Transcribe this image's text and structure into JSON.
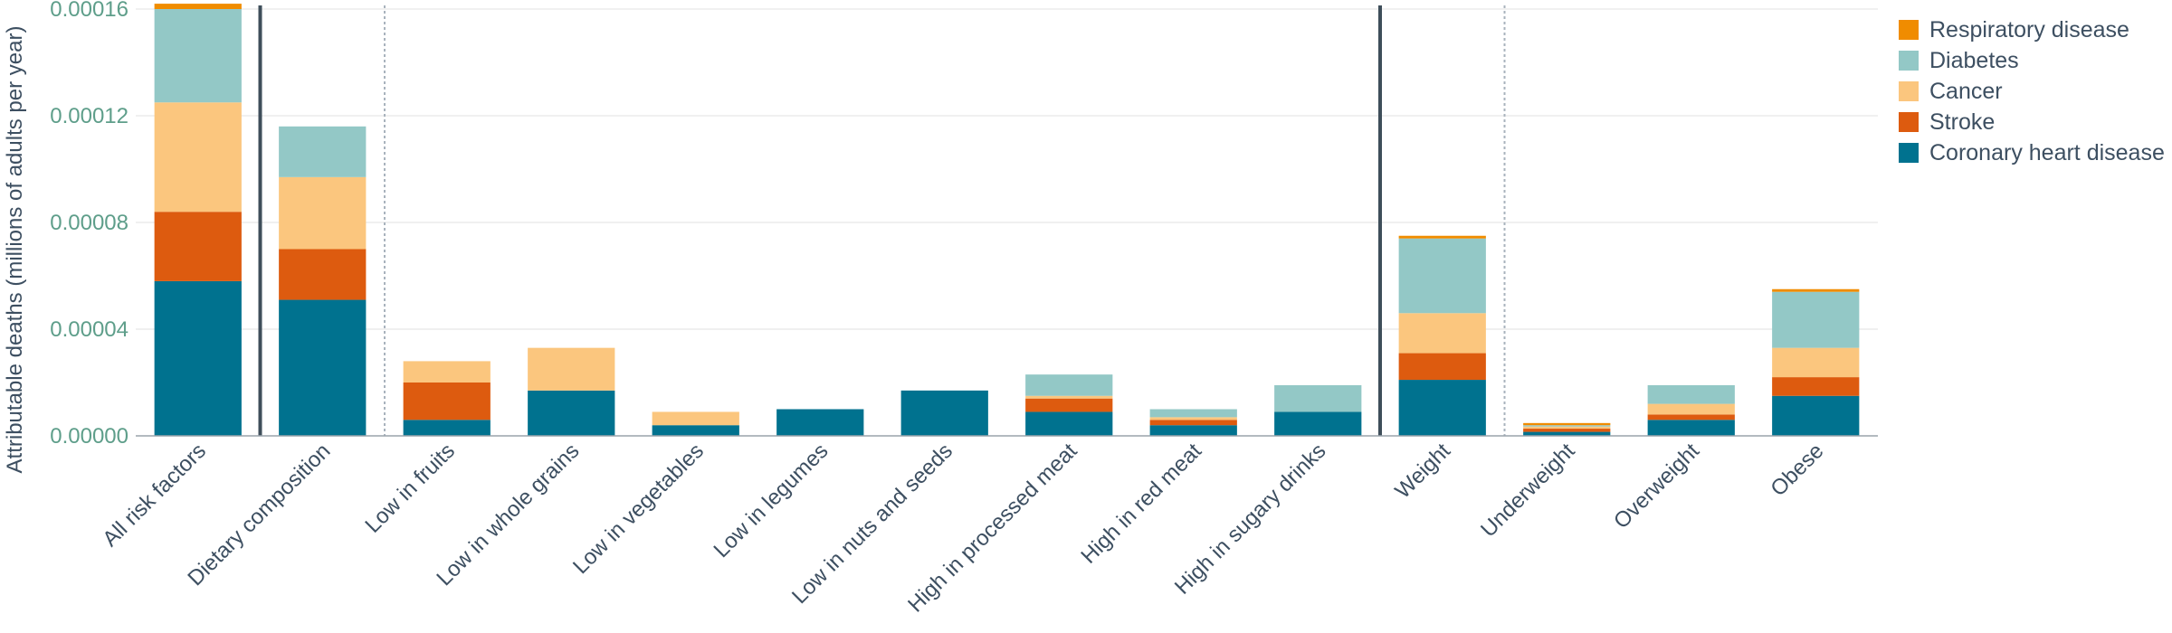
{
  "chart_data": {
    "type": "bar",
    "stacked": true,
    "title": "",
    "xlabel": "",
    "ylabel": "Attributable deaths (millions of adults per year)",
    "ylim": [
      0,
      0.00016
    ],
    "yticks": [
      "0.00000",
      "0.00004",
      "0.00008",
      "0.00012",
      "0.00016"
    ],
    "ytick_values": [
      0,
      4e-05,
      8e-05,
      0.00012,
      0.00016
    ],
    "grid": true,
    "legend_position": "top-right",
    "categories": [
      "All risk factors",
      "Dietary composition",
      "Low in fruits",
      "Low in whole grains",
      "Low in vegetables",
      "Low in legumes",
      "Low in nuts and seeds",
      "High in processed meat",
      "High in red meat",
      "High in sugary drinks",
      "Weight",
      "Underweight",
      "Overweight",
      "Obese"
    ],
    "series": [
      {
        "name": "Coronary heart disease",
        "color": "#00728f",
        "values": [
          5.8e-05,
          5.1e-05,
          6e-06,
          1.7e-05,
          4e-06,
          1e-05,
          1.7e-05,
          9e-06,
          4e-06,
          9e-06,
          2.1e-05,
          1.5e-06,
          6e-06,
          1.5e-05
        ]
      },
      {
        "name": "Stroke",
        "color": "#dd5b0f",
        "values": [
          2.6e-05,
          1.9e-05,
          1.4e-05,
          0,
          0,
          0,
          0,
          5e-06,
          2e-06,
          0,
          1e-05,
          1.2e-06,
          2e-06,
          7e-06
        ]
      },
      {
        "name": "Cancer",
        "color": "#fbc67e",
        "values": [
          4.1e-05,
          2.7e-05,
          8e-06,
          1.6e-05,
          5e-06,
          0,
          0,
          1e-06,
          1e-06,
          0,
          1.5e-05,
          8e-07,
          4e-06,
          1.1e-05
        ]
      },
      {
        "name": "Diabetes",
        "color": "#93c8c6",
        "values": [
          3.5e-05,
          1.9e-05,
          0,
          0,
          0,
          0,
          0,
          8e-06,
          3e-06,
          1e-05,
          2.8e-05,
          5e-07,
          7e-06,
          2.1e-05
        ]
      },
      {
        "name": "Respiratory disease",
        "color": "#f08c00",
        "values": [
          2e-06,
          0,
          0,
          0,
          0,
          0,
          0,
          0,
          0,
          0,
          1e-06,
          8e-07,
          0,
          1e-06
        ]
      }
    ],
    "legend_order": [
      "Respiratory disease",
      "Diabetes",
      "Cancer",
      "Stroke",
      "Coronary heart disease"
    ],
    "solid_dividers_after": [
      "All risk factors",
      "High in sugary drinks"
    ],
    "dotted_dividers_after": [
      "Dietary composition",
      "Weight"
    ]
  }
}
